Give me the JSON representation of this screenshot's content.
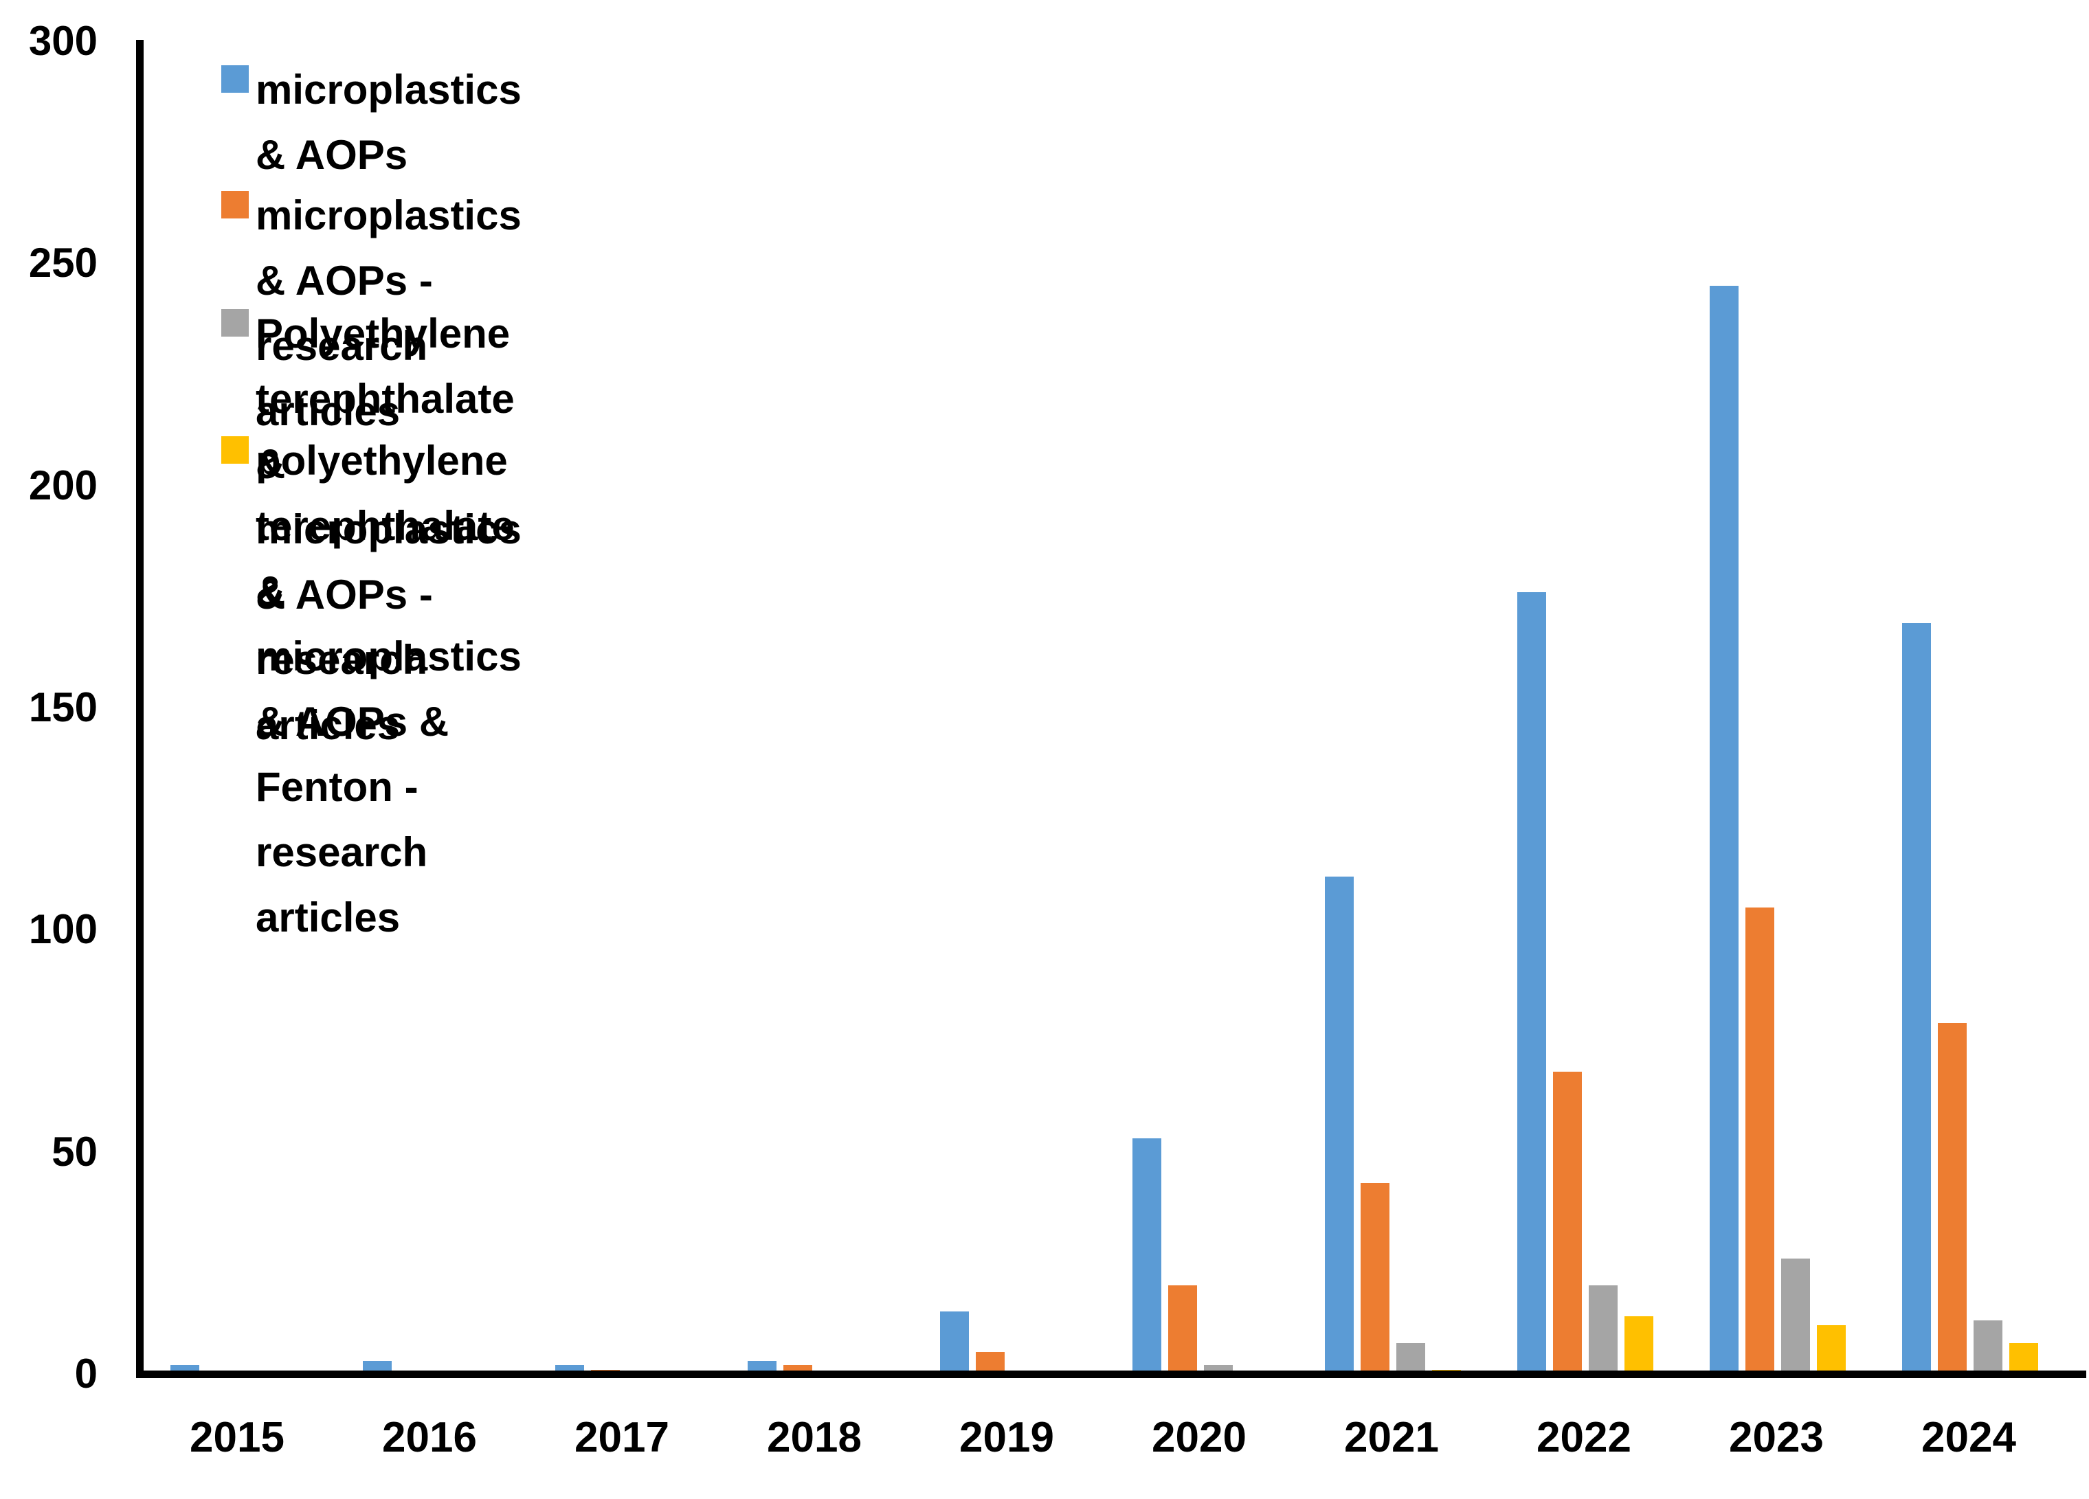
{
  "chart_data": {
    "type": "bar",
    "title": "",
    "xlabel": "",
    "ylabel": "",
    "categories": [
      "2015",
      "2016",
      "2017",
      "2018",
      "2019",
      "2020",
      "2021",
      "2022",
      "2023",
      "2024"
    ],
    "series": [
      {
        "name": "microplastics & AOPs",
        "color": "#5B9BD5",
        "values": [
          2,
          3,
          2,
          3,
          14,
          53,
          112,
          176,
          245,
          169
        ]
      },
      {
        "name": "microplastics & AOPs - research articles",
        "color": "#ED7D31",
        "values": [
          0,
          0,
          1,
          2,
          5,
          20,
          43,
          68,
          105,
          79
        ]
      },
      {
        "name": "Polyethylene terephthalate & microplastics & AOPs - research articles",
        "color": "#A5A5A5",
        "values": [
          0,
          0,
          0,
          0,
          0,
          2,
          7,
          20,
          26,
          12
        ]
      },
      {
        "name": "polyethylene terephthalate & microplastics & AOPs & Fenton - research articles",
        "color": "#FFC000",
        "values": [
          0,
          0,
          0,
          0,
          0,
          0,
          1,
          13,
          11,
          7
        ]
      }
    ],
    "legend_labels": [
      "microplastics & AOPs",
      "microplastics & AOPs - research articles",
      "Polyethylene terephthalate & microplastics & AOPs - research\narticles",
      "polyethylene terephthalate & microplastics & AOPs & Fenton -\nresearch articles"
    ],
    "legend_position": "inside-top-left",
    "ylim": [
      0,
      300
    ],
    "yticks": [
      0,
      50,
      100,
      150,
      200,
      250,
      300
    ],
    "grid": false,
    "axis_color": "#000000",
    "background_color": "#FFFFFF"
  }
}
